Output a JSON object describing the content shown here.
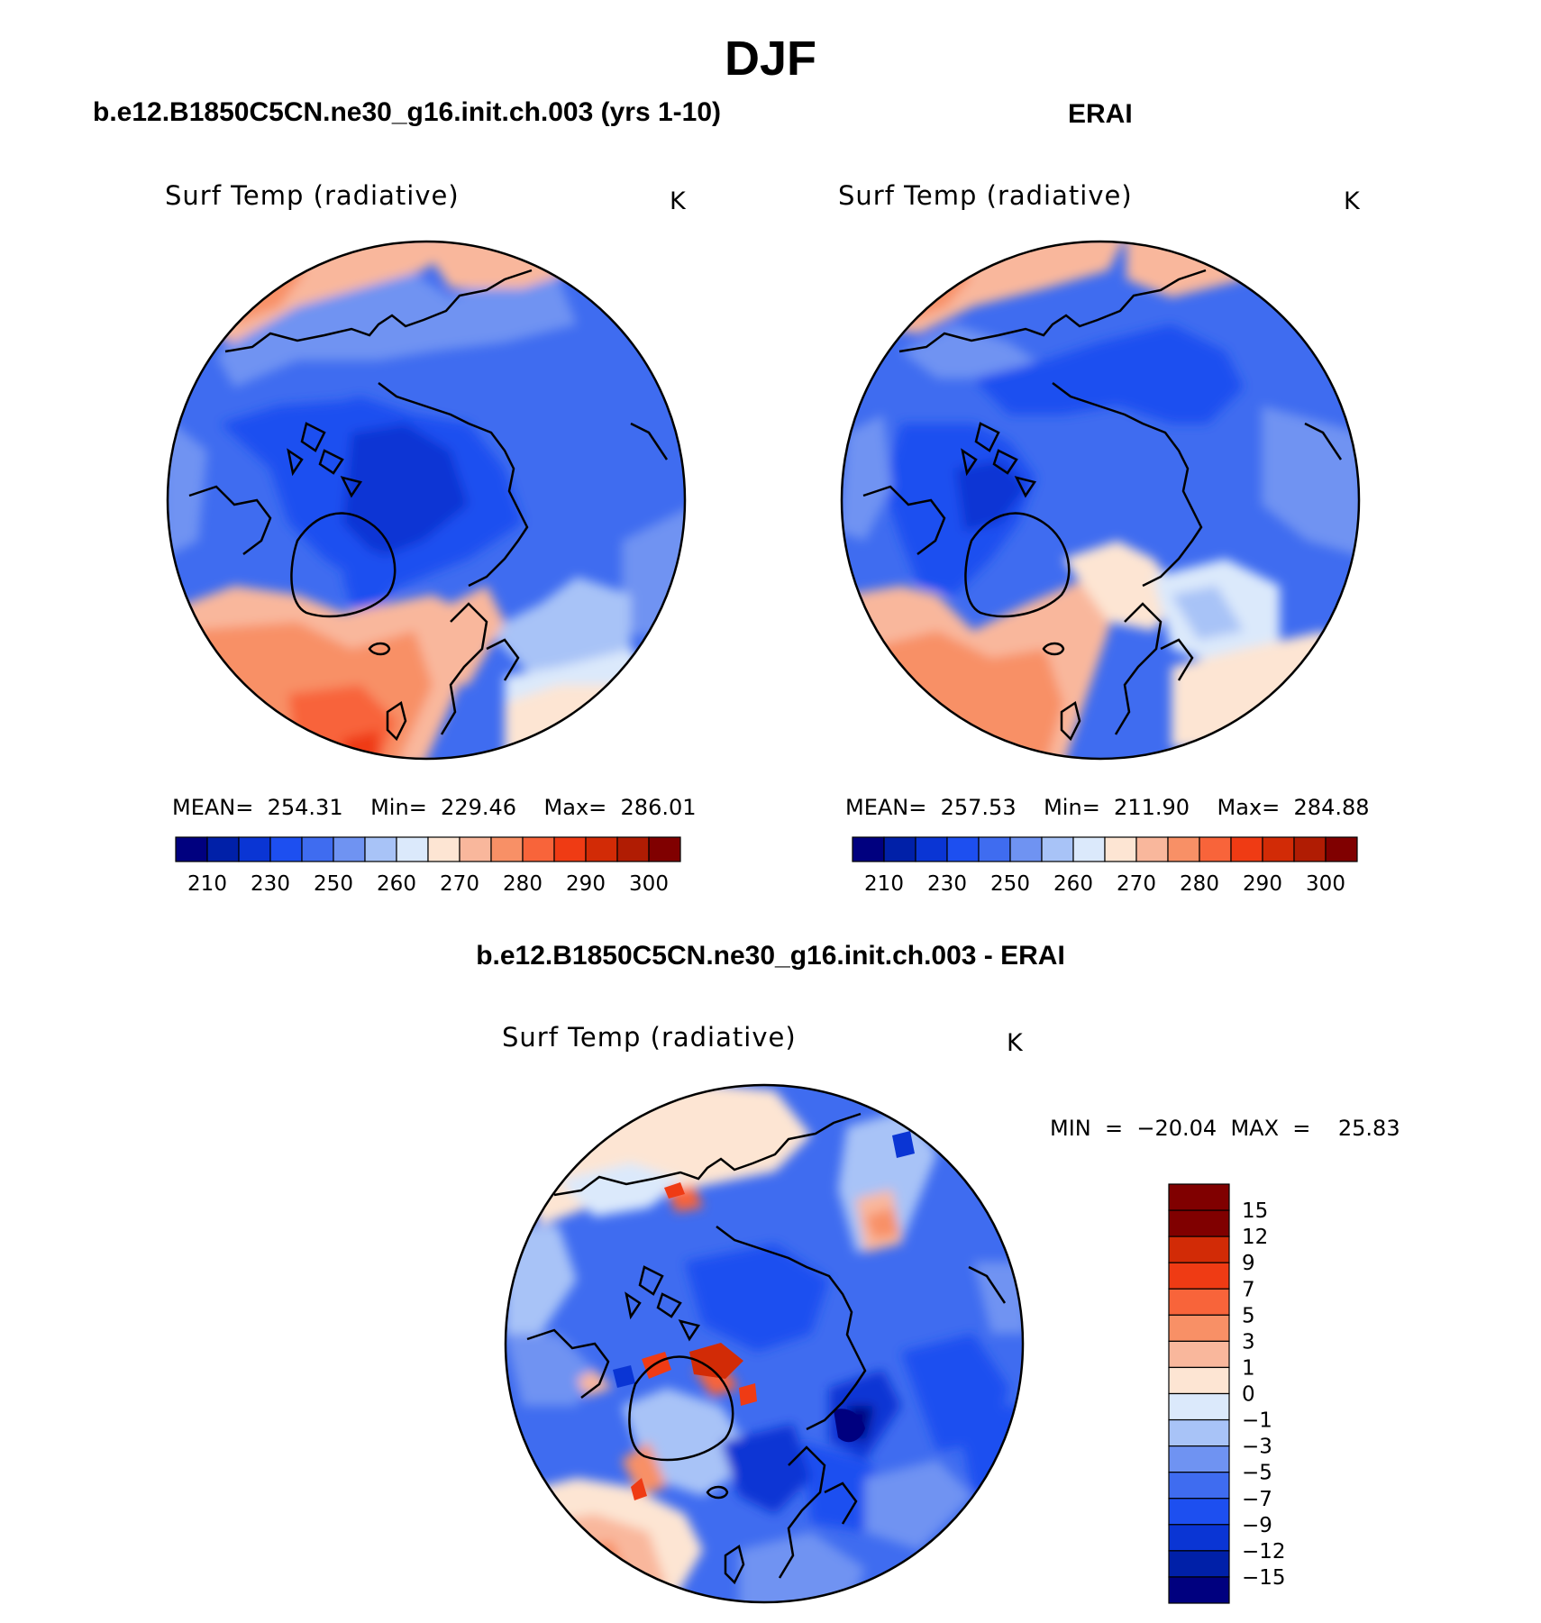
{
  "chart_data": {
    "type": "heatmap",
    "title": "DJF",
    "projection": "north polar stereographic",
    "colors": {
      "abs": [
        "#00007f",
        "#0020a8",
        "#0a35d4",
        "#1d4ff0",
        "#3f6cf0",
        "#6f93f2",
        "#a8c3f7",
        "#dbe9fb",
        "#fde5d3",
        "#f9b79c",
        "#f89066",
        "#f8643a",
        "#ef3b14",
        "#d22b06",
        "#b01c03",
        "#800000"
      ],
      "diff": [
        "#00007f",
        "#0020a8",
        "#0a35d4",
        "#1d4ff0",
        "#3f6cf0",
        "#6f93f2",
        "#a8c3f7",
        "#dbe9fb",
        "#fde5d3",
        "#f9b79c",
        "#f89066",
        "#f8643a",
        "#ef3b14",
        "#d22b06",
        "#800000"
      ]
    },
    "panels": [
      {
        "id": "model",
        "title": "b.e12.B1850C5CN.ne30_g16.init.ch.003 (yrs 1-10)",
        "variable": "Surf Temp (radiative)",
        "units": "K",
        "stats": "MEAN=  254.31    Min=  229.46    Max=  286.01",
        "mean": 254.31,
        "min": 229.46,
        "max": 286.01,
        "colorbar_labels": [
          "210",
          "230",
          "250",
          "260",
          "270",
          "280",
          "290",
          "300"
        ]
      },
      {
        "id": "obs",
        "title": "ERAI",
        "variable": "Surf Temp (radiative)",
        "units": "K",
        "stats": "MEAN=  257.53    Min=  211.90    Max=  284.88",
        "mean": 257.53,
        "min": 211.9,
        "max": 284.88,
        "colorbar_labels": [
          "210",
          "230",
          "250",
          "260",
          "270",
          "280",
          "290",
          "300"
        ]
      },
      {
        "id": "diff",
        "title": "b.e12.B1850C5CN.ne30_g16.init.ch.003 - ERAI",
        "variable": "Surf Temp (radiative)",
        "units": "K",
        "stats": "MIN  =  −20.04  MAX  =    25.83",
        "min": -20.04,
        "max": 25.83,
        "colorbar_labels": [
          "15",
          "12",
          "9",
          "7",
          "5",
          "3",
          "1",
          "0",
          "−1",
          "−3",
          "−5",
          "−7",
          "−9",
          "−12",
          "−15"
        ]
      }
    ]
  }
}
